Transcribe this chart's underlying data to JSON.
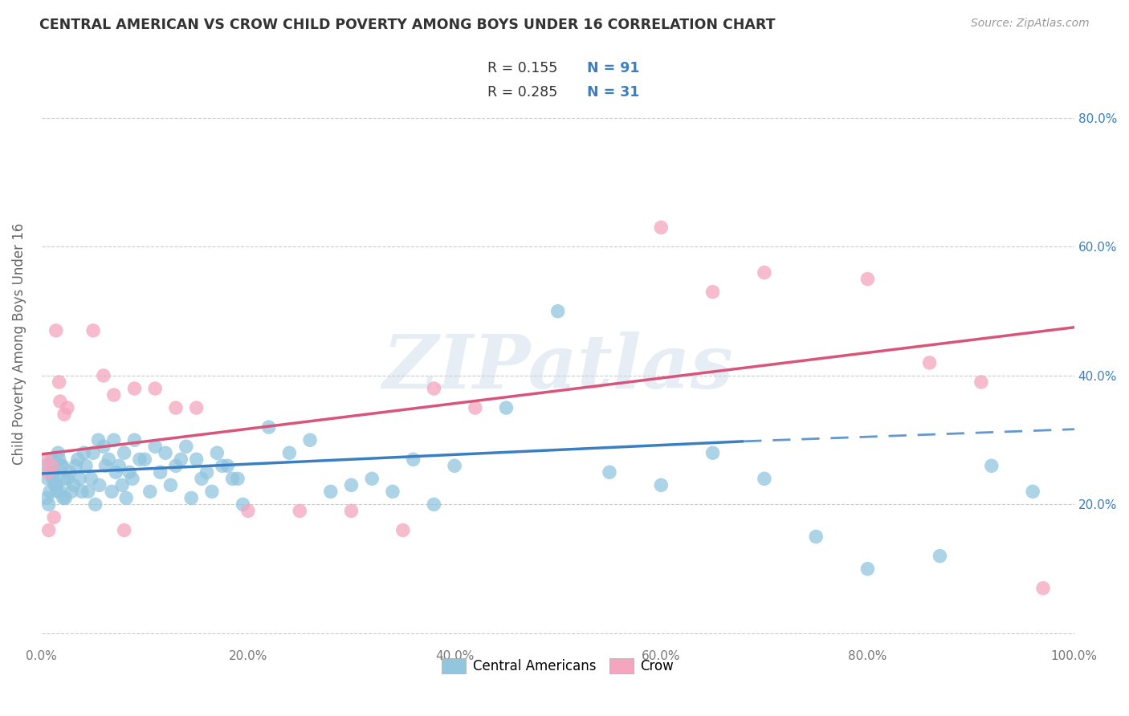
{
  "title": "CENTRAL AMERICAN VS CROW CHILD POVERTY AMONG BOYS UNDER 16 CORRELATION CHART",
  "source": "Source: ZipAtlas.com",
  "ylabel": "Child Poverty Among Boys Under 16",
  "xlim": [
    0,
    1.0
  ],
  "ylim": [
    -0.02,
    0.92
  ],
  "xticks": [
    0.0,
    0.2,
    0.4,
    0.6,
    0.8,
    1.0
  ],
  "yticks": [
    0.0,
    0.2,
    0.4,
    0.6,
    0.8
  ],
  "xticklabels": [
    "0.0%",
    "20.0%",
    "40.0%",
    "60.0%",
    "80.0%",
    "100.0%"
  ],
  "left_yticklabels": [
    "",
    "",
    "",
    "",
    ""
  ],
  "right_yticklabels": [
    "20.0%",
    "40.0%",
    "60.0%",
    "80.0%"
  ],
  "right_yticks": [
    0.2,
    0.4,
    0.6,
    0.8
  ],
  "blue_color": "#92c5de",
  "pink_color": "#f4a6be",
  "blue_line_color": "#3a7fc1",
  "pink_line_color": "#d9547a",
  "right_label_color": "#3a7fc1",
  "legend_R1": "R = 0.155",
  "legend_N1": "N = 91",
  "legend_R2": "R = 0.285",
  "legend_N2": "N = 31",
  "blue_trend_start_x": 0.0,
  "blue_trend_start_y": 0.248,
  "blue_trend_end_solid_x": 0.68,
  "blue_trend_end_solid_y": 0.298,
  "blue_trend_end_dashed_x": 1.02,
  "blue_trend_end_dashed_y": 0.318,
  "pink_trend_start_x": 0.0,
  "pink_trend_start_y": 0.278,
  "pink_trend_end_x": 1.0,
  "pink_trend_end_y": 0.475,
  "blue_scatter_x": [
    0.004,
    0.006,
    0.008,
    0.01,
    0.012,
    0.014,
    0.016,
    0.018,
    0.02,
    0.022,
    0.005,
    0.009,
    0.013,
    0.017,
    0.021,
    0.025,
    0.029,
    0.033,
    0.037,
    0.041,
    0.007,
    0.011,
    0.015,
    0.019,
    0.023,
    0.027,
    0.031,
    0.035,
    0.039,
    0.043,
    0.05,
    0.055,
    0.06,
    0.065,
    0.07,
    0.075,
    0.08,
    0.085,
    0.09,
    0.095,
    0.045,
    0.048,
    0.052,
    0.056,
    0.062,
    0.068,
    0.072,
    0.078,
    0.082,
    0.088,
    0.1,
    0.11,
    0.12,
    0.13,
    0.14,
    0.15,
    0.16,
    0.17,
    0.18,
    0.19,
    0.105,
    0.115,
    0.125,
    0.135,
    0.145,
    0.155,
    0.165,
    0.175,
    0.185,
    0.195,
    0.22,
    0.24,
    0.26,
    0.28,
    0.3,
    0.32,
    0.34,
    0.36,
    0.38,
    0.4,
    0.45,
    0.5,
    0.55,
    0.6,
    0.65,
    0.7,
    0.75,
    0.8,
    0.87,
    0.92,
    0.96
  ],
  "blue_scatter_y": [
    0.26,
    0.24,
    0.22,
    0.27,
    0.25,
    0.23,
    0.28,
    0.22,
    0.26,
    0.24,
    0.21,
    0.25,
    0.23,
    0.27,
    0.21,
    0.24,
    0.22,
    0.26,
    0.24,
    0.28,
    0.2,
    0.24,
    0.22,
    0.26,
    0.21,
    0.25,
    0.23,
    0.27,
    0.22,
    0.26,
    0.28,
    0.3,
    0.29,
    0.27,
    0.3,
    0.26,
    0.28,
    0.25,
    0.3,
    0.27,
    0.22,
    0.24,
    0.2,
    0.23,
    0.26,
    0.22,
    0.25,
    0.23,
    0.21,
    0.24,
    0.27,
    0.29,
    0.28,
    0.26,
    0.29,
    0.27,
    0.25,
    0.28,
    0.26,
    0.24,
    0.22,
    0.25,
    0.23,
    0.27,
    0.21,
    0.24,
    0.22,
    0.26,
    0.24,
    0.2,
    0.32,
    0.28,
    0.3,
    0.22,
    0.23,
    0.24,
    0.22,
    0.27,
    0.2,
    0.26,
    0.35,
    0.5,
    0.25,
    0.23,
    0.28,
    0.24,
    0.15,
    0.1,
    0.12,
    0.26,
    0.22
  ],
  "pink_scatter_x": [
    0.004,
    0.006,
    0.01,
    0.014,
    0.018,
    0.022,
    0.007,
    0.012,
    0.017,
    0.025,
    0.05,
    0.06,
    0.07,
    0.08,
    0.09,
    0.11,
    0.13,
    0.15,
    0.2,
    0.25,
    0.3,
    0.35,
    0.38,
    0.42,
    0.6,
    0.65,
    0.7,
    0.8,
    0.86,
    0.91,
    0.97
  ],
  "pink_scatter_y": [
    0.27,
    0.25,
    0.26,
    0.47,
    0.36,
    0.34,
    0.16,
    0.18,
    0.39,
    0.35,
    0.47,
    0.4,
    0.37,
    0.16,
    0.38,
    0.38,
    0.35,
    0.35,
    0.19,
    0.19,
    0.19,
    0.16,
    0.38,
    0.35,
    0.63,
    0.53,
    0.56,
    0.55,
    0.42,
    0.39,
    0.07
  ],
  "watermark": "ZIPatlas",
  "background_color": "#ffffff",
  "grid_color": "#cccccc"
}
